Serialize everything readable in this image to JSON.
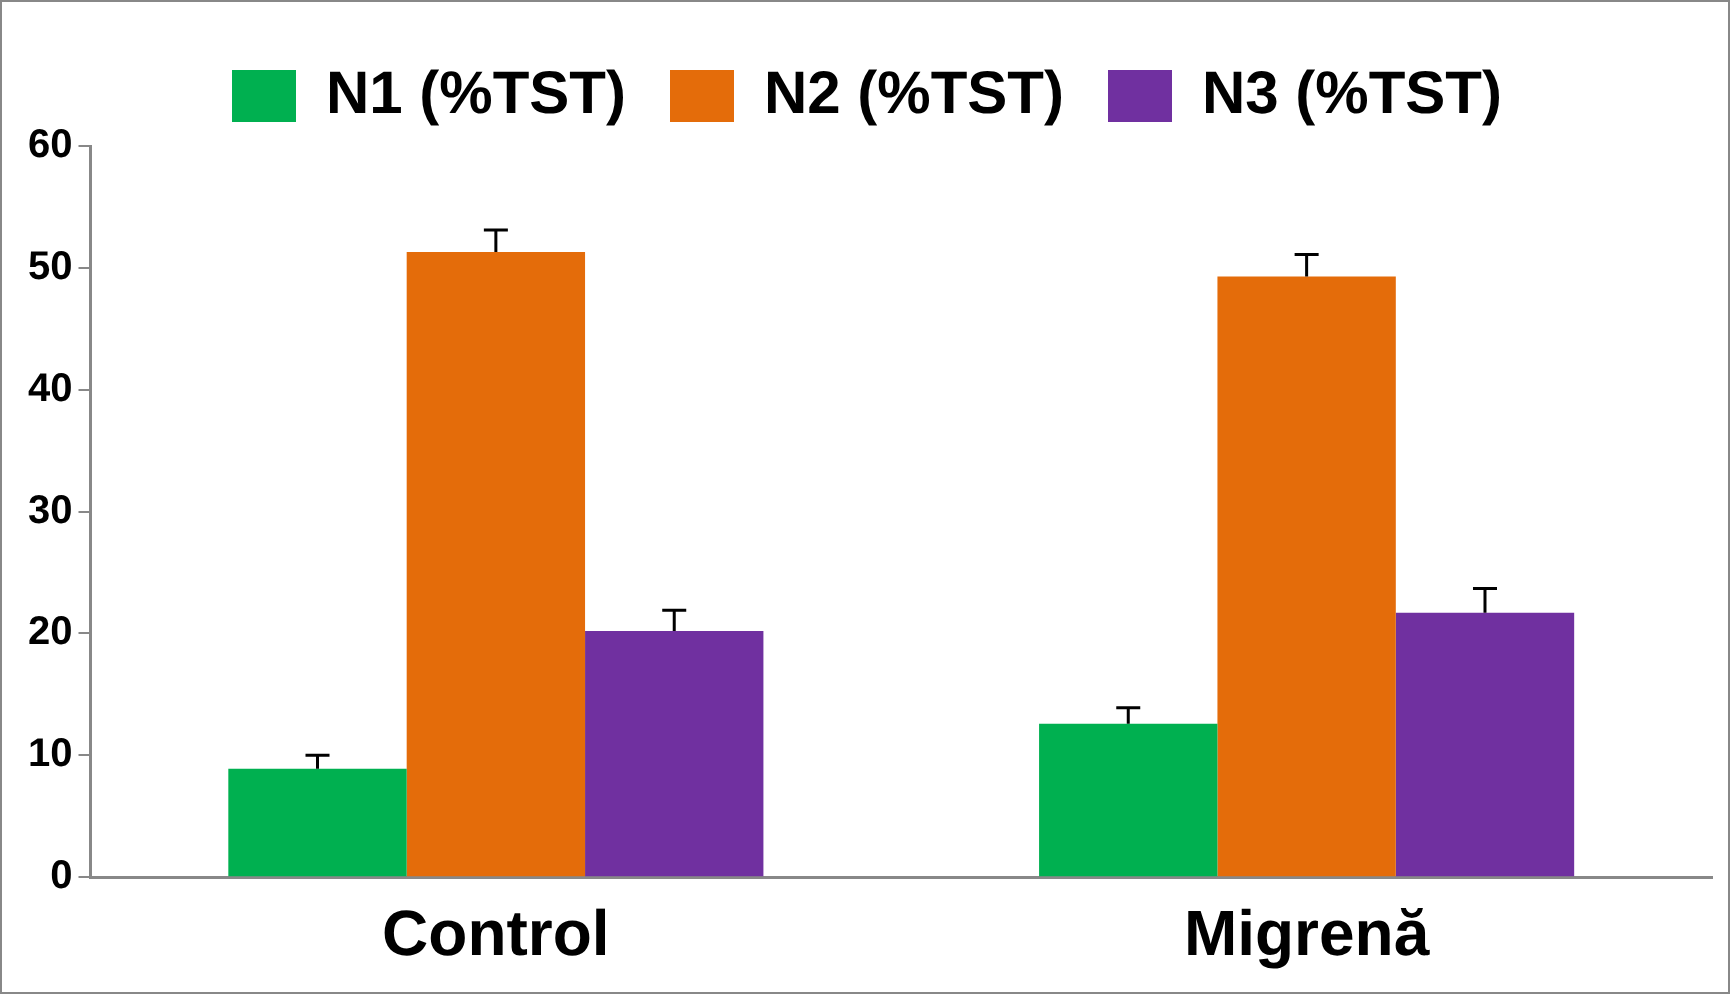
{
  "chart_data": {
    "type": "bar",
    "categories": [
      "Control",
      "Migrenă"
    ],
    "series": [
      {
        "name": "N1 (%TST)",
        "color": "#00b050",
        "values": [
          8.9,
          12.6
        ],
        "errors": [
          [
            8.9,
            10.0
          ],
          [
            12.6,
            13.9
          ]
        ]
      },
      {
        "name": "N2 (%TST)",
        "color": "#e46c0a",
        "values": [
          51.3,
          49.3
        ],
        "errors": [
          [
            51.3,
            53.1
          ],
          [
            49.3,
            51.1
          ]
        ]
      },
      {
        "name": "N3 (%TST)",
        "color": "#7030a0",
        "values": [
          20.2,
          21.7
        ],
        "errors": [
          [
            20.2,
            21.9
          ],
          [
            21.7,
            23.7
          ]
        ]
      }
    ],
    "ylim": [
      0,
      60
    ],
    "yticks": [
      0,
      10,
      20,
      30,
      40,
      50,
      60
    ],
    "grid": false,
    "legend": "top"
  }
}
